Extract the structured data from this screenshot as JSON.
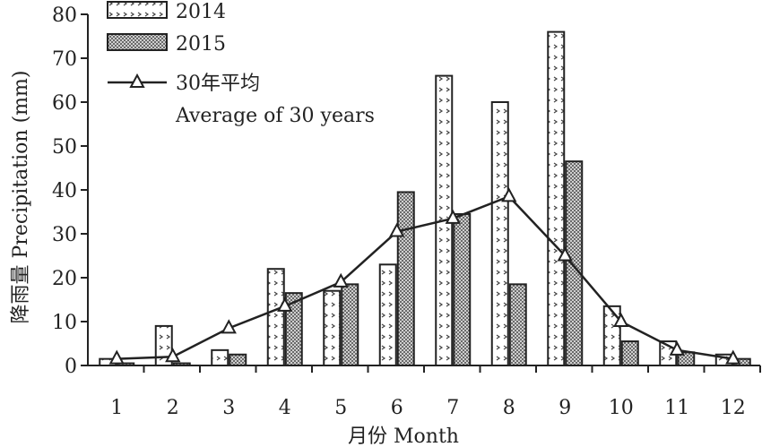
{
  "chart_data": {
    "type": "bar",
    "categories": [
      "1",
      "2",
      "3",
      "4",
      "5",
      "6",
      "7",
      "8",
      "9",
      "10",
      "11",
      "12"
    ],
    "series": [
      {
        "name": "2014",
        "kind": "bar",
        "pattern": "dotted",
        "values": [
          1.5,
          9,
          3.5,
          22,
          17,
          23,
          66,
          60,
          76,
          13.5,
          5.5,
          2.5
        ]
      },
      {
        "name": "2015",
        "kind": "bar",
        "pattern": "crosshatch",
        "values": [
          0.5,
          0.5,
          2.5,
          16.5,
          18.5,
          39.5,
          34.5,
          18.5,
          46.5,
          5.5,
          3,
          1.5
        ]
      },
      {
        "name": "30年平均",
        "name_line2": "Average of 30 years",
        "kind": "line",
        "marker": "triangle",
        "values": [
          1.5,
          2,
          8.5,
          13.5,
          19,
          30.5,
          33.5,
          38.5,
          25,
          10,
          3.5,
          1.5
        ]
      }
    ],
    "ylabel": "降雨量 Precipitation (mm)",
    "xlabel": "月份 Month",
    "ylim": [
      0,
      80
    ],
    "yticks": [
      0,
      10,
      20,
      30,
      40,
      50,
      60,
      70,
      80
    ],
    "grid": false,
    "legend_position": "top-left"
  }
}
